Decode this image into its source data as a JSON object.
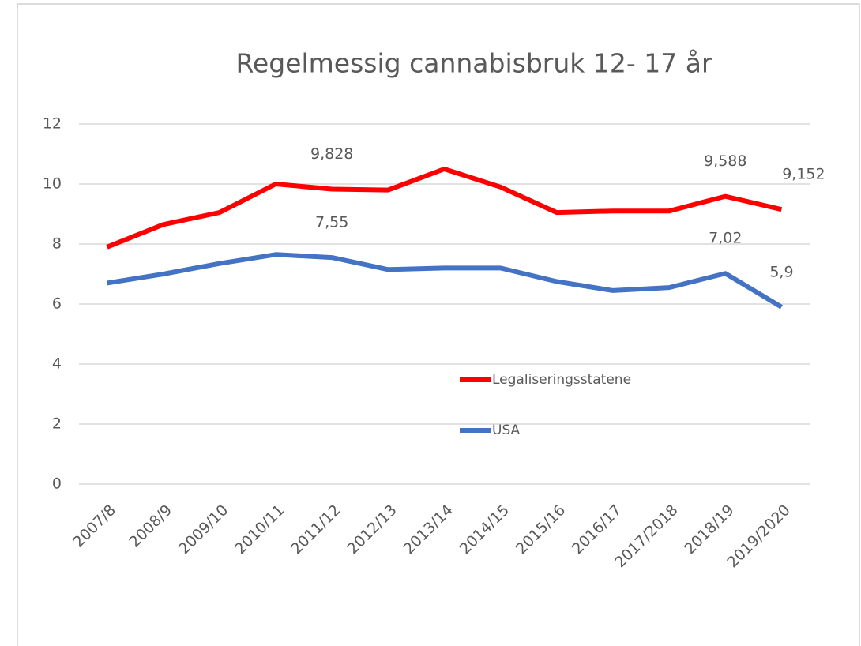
{
  "chart_data": {
    "type": "line",
    "title": "Regelmessig cannabisbruk 12- 17 år",
    "categories": [
      "2007/8",
      "2008/9",
      "2009/10",
      "2010/11",
      "2011/12",
      "2012/13",
      "2013/14",
      "2014/15",
      "2015/16",
      "2016/17",
      "2017/2018",
      "2018/19",
      "2019/2020"
    ],
    "series": [
      {
        "name": "Legaliseringsstatene",
        "color": "#ff0000",
        "values": [
          7.9,
          8.65,
          9.05,
          10.0,
          9.828,
          9.8,
          10.5,
          9.9,
          9.05,
          9.1,
          9.1,
          9.588,
          9.152
        ],
        "value_labels": [
          null,
          null,
          null,
          null,
          "9,828",
          null,
          null,
          null,
          null,
          null,
          null,
          "9,588",
          "9,152"
        ]
      },
      {
        "name": "USA",
        "color": "#4472c4",
        "values": [
          6.7,
          7.0,
          7.35,
          7.65,
          7.55,
          7.15,
          7.2,
          7.2,
          6.75,
          6.45,
          6.55,
          7.02,
          5.9
        ],
        "value_labels": [
          null,
          null,
          null,
          null,
          "7,55",
          null,
          null,
          null,
          null,
          null,
          null,
          "7,02",
          "5,9"
        ]
      }
    ],
    "ylim": [
      0,
      12
    ],
    "yticks": [
      0,
      2,
      4,
      6,
      8,
      10,
      12
    ],
    "grid": true,
    "legend": "inside"
  }
}
